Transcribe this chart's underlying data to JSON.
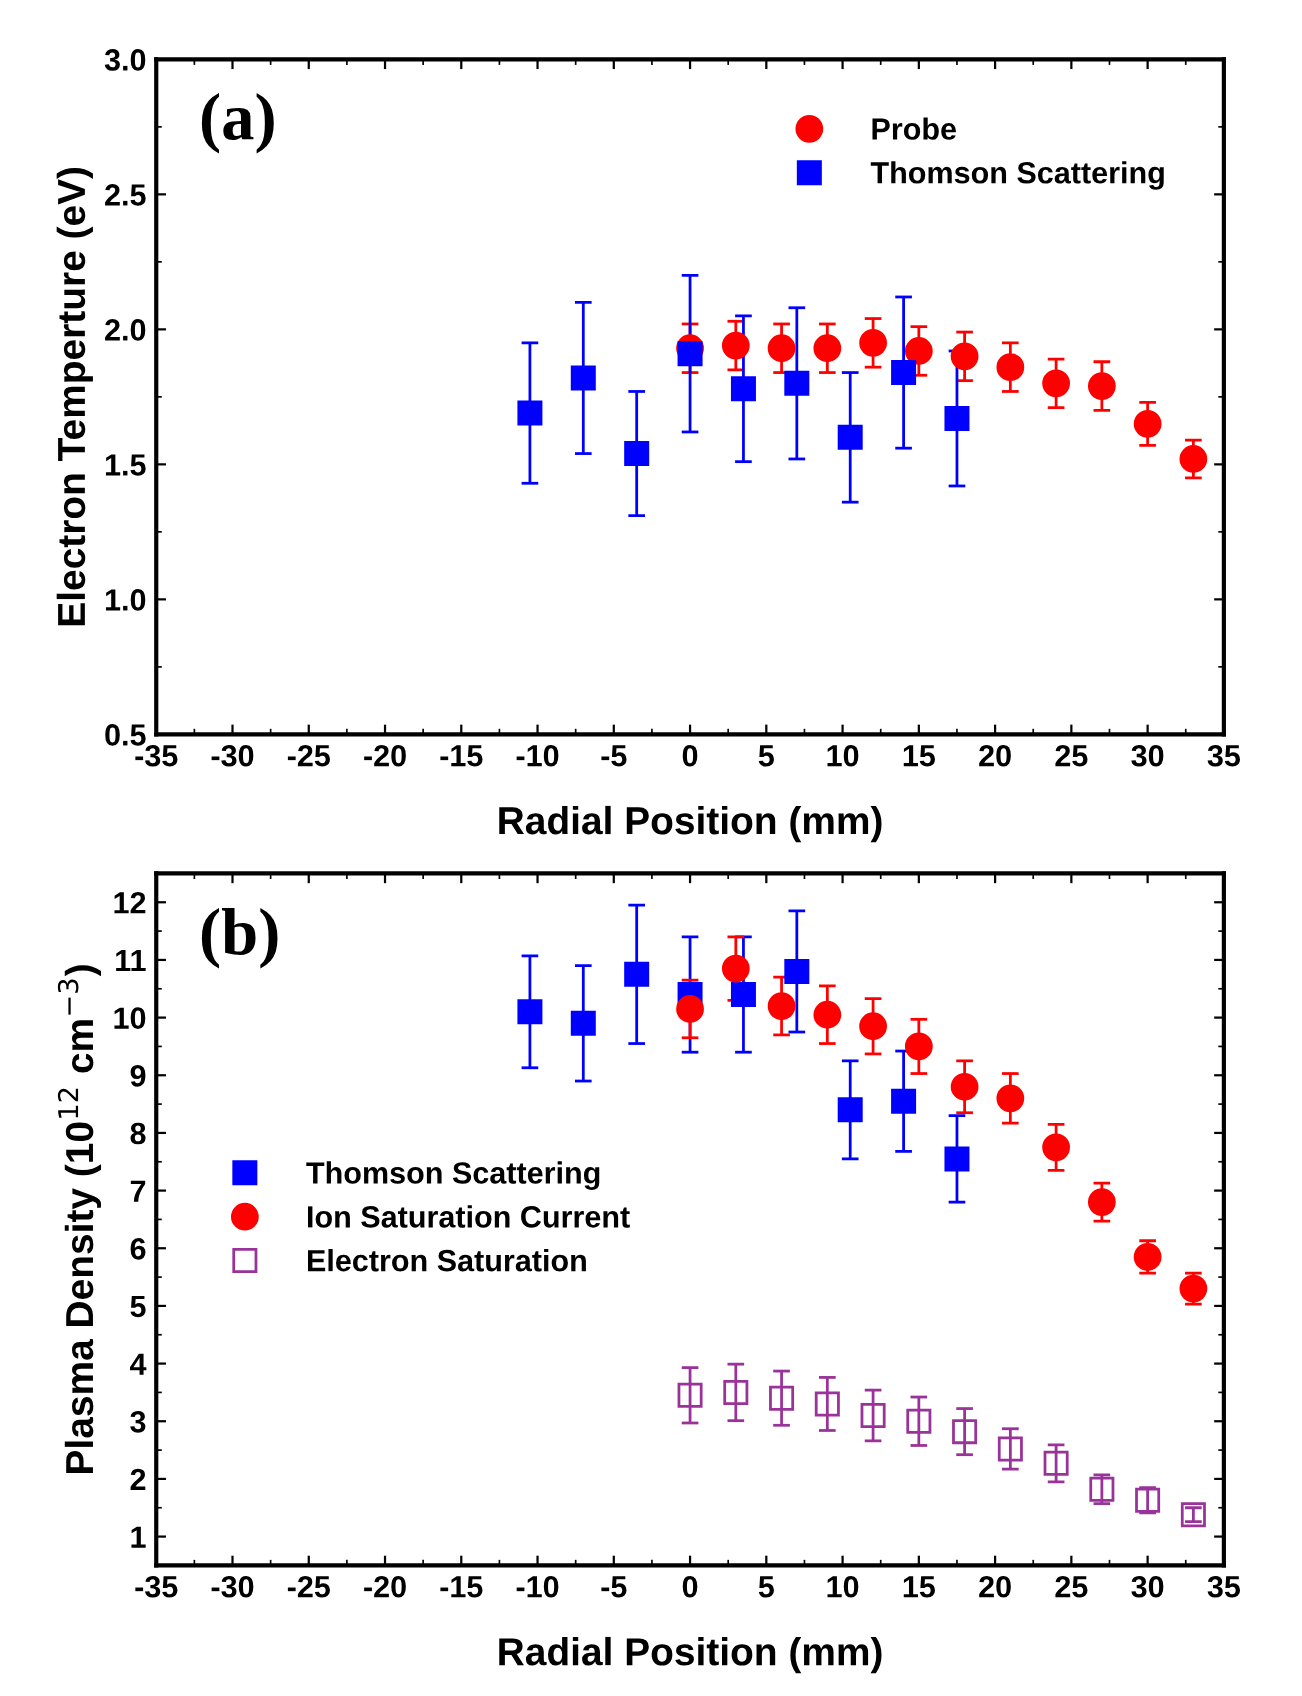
{
  "chart_data": [
    {
      "type": "scatter",
      "xlabel": "Radial Position (mm)",
      "ylabel": "Electron Temperture (eV)",
      "annotations": [
        "(a)"
      ],
      "xlim": [
        -35,
        35
      ],
      "xticks": [
        -35,
        -30,
        -25,
        -20,
        -15,
        -10,
        -5,
        0,
        5,
        10,
        15,
        20,
        25,
        30,
        35
      ],
      "ylim": [
        0.5,
        3.0
      ],
      "yticks": [
        {
          "value": 0.5,
          "label": "0.5"
        },
        {
          "value": 1.0,
          "label": "1.0"
        },
        {
          "value": 1.5,
          "label": "1.5"
        },
        {
          "value": 2.0,
          "label": "2.0"
        },
        {
          "value": 2.5,
          "label": "2.5"
        },
        {
          "value": 3.0,
          "label": "3.0"
        }
      ],
      "grid": false,
      "legend": "top right",
      "series": [
        {
          "name": "Probe",
          "color": "#ff0000",
          "marker": "circle",
          "x": [
            0,
            3,
            6,
            9,
            12,
            15,
            18,
            21,
            24,
            27,
            30,
            33
          ],
          "values": [
            1.93,
            1.94,
            1.93,
            1.93,
            1.95,
            1.92,
            1.9,
            1.86,
            1.8,
            1.79,
            1.65,
            1.52
          ],
          "errors": [
            0.09,
            0.09,
            0.09,
            0.09,
            0.09,
            0.09,
            0.09,
            0.09,
            0.09,
            0.09,
            0.08,
            0.07
          ]
        },
        {
          "name": "Thomson Scattering",
          "color": "#0000ff",
          "marker": "square",
          "x": [
            -10.5,
            -7,
            -3.5,
            0,
            3.5,
            7,
            10.5,
            14,
            17.5
          ],
          "values": [
            1.69,
            1.82,
            1.54,
            1.91,
            1.78,
            1.8,
            1.6,
            1.84,
            1.67
          ],
          "errors": [
            0.26,
            0.28,
            0.23,
            0.29,
            0.27,
            0.28,
            0.24,
            0.28,
            0.25
          ]
        }
      ]
    },
    {
      "type": "scatter",
      "xlabel": "Radial Position (mm)",
      "ylabel": "Plasma Density (10$^{12}$ cm$^{−3}$)",
      "annotations": [
        "(b)"
      ],
      "xlim": [
        -35,
        35
      ],
      "xticks": [
        -35,
        -30,
        -25,
        -20,
        -15,
        -10,
        -5,
        0,
        5,
        10,
        15,
        20,
        25,
        30,
        35
      ],
      "ylim": [
        0.5,
        12.5
      ],
      "yticks": [
        1,
        2,
        3,
        4,
        5,
        6,
        7,
        8,
        9,
        10,
        11,
        12
      ],
      "grid": false,
      "legend": "center left",
      "series": [
        {
          "name": "Thomson Scattering",
          "color": "#0000ff",
          "marker": "square",
          "x": [
            -10.5,
            -7,
            -3.5,
            0,
            3.5,
            7,
            10.5,
            14,
            17.5
          ],
          "values": [
            10.1,
            9.9,
            10.75,
            10.4,
            10.4,
            10.8,
            8.4,
            8.55,
            7.55
          ],
          "errors": [
            0.97,
            1.0,
            1.2,
            1.0,
            1.0,
            1.05,
            0.85,
            0.87,
            0.75
          ]
        },
        {
          "name": "Ion Saturation Current",
          "color": "#ff0000",
          "marker": "circle",
          "x": [
            0,
            3,
            6,
            9,
            12,
            15,
            18,
            21,
            24,
            27,
            30,
            33
          ],
          "values": [
            10.15,
            10.85,
            10.2,
            10.05,
            9.85,
            9.5,
            8.8,
            8.6,
            7.75,
            6.8,
            5.85,
            5.3
          ],
          "errors": [
            0.5,
            0.55,
            0.5,
            0.5,
            0.48,
            0.47,
            0.45,
            0.43,
            0.4,
            0.33,
            0.28,
            0.27
          ]
        },
        {
          "name": "Electron Saturation",
          "color": "#993399",
          "marker": "square",
          "x": [
            0,
            3,
            6,
            9,
            12,
            15,
            18,
            21,
            24,
            27,
            30,
            33
          ],
          "values": [
            3.45,
            3.5,
            3.4,
            3.3,
            3.1,
            3.0,
            2.82,
            2.52,
            2.27,
            1.82,
            1.63,
            1.38
          ],
          "errors": [
            0.48,
            0.49,
            0.47,
            0.46,
            0.44,
            0.42,
            0.4,
            0.35,
            0.32,
            0.25,
            0.22,
            0.12
          ]
        }
      ]
    }
  ]
}
